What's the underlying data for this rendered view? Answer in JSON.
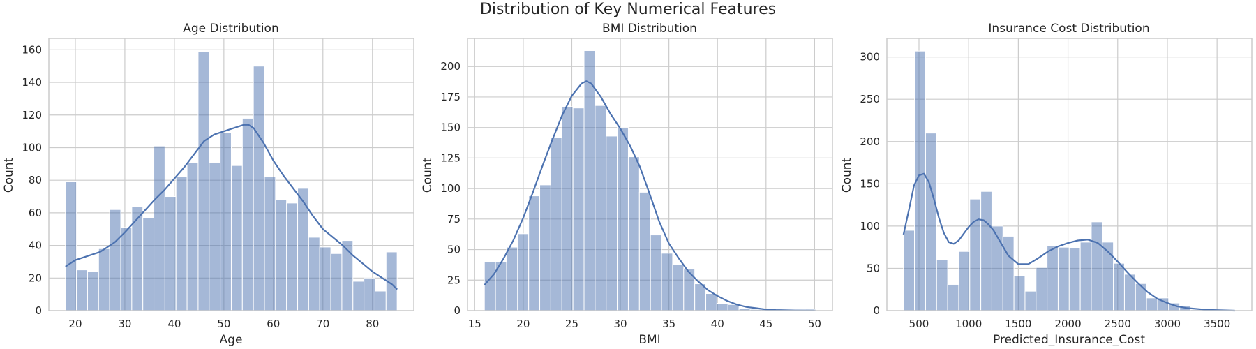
{
  "suptitle": "Distribution of Key Numerical Features",
  "style": {
    "bar_fill": "#4c72b0",
    "bar_opacity": 0.5,
    "bar_stroke": "#ffffff",
    "kde_color": "#4c72b0",
    "grid_color": "#cccccc",
    "frame_color": "#cccccc",
    "background": "#ffffff"
  },
  "chart_data": [
    {
      "type": "histogram",
      "title": "Age Distribution",
      "xlabel": "Age",
      "ylabel": "Count",
      "grid": true,
      "xlim": [
        14.65,
        88.35
      ],
      "ylim": [
        0,
        167
      ],
      "xticks": [
        20,
        30,
        40,
        50,
        60,
        70,
        80
      ],
      "yticks": [
        0,
        20,
        40,
        60,
        80,
        100,
        120,
        140,
        160
      ],
      "bin_start": 18,
      "bin_width": 2.233,
      "values": [
        79,
        25,
        24,
        38,
        62,
        51,
        64,
        57,
        101,
        70,
        82,
        91,
        159,
        91,
        109,
        89,
        118,
        150,
        82,
        68,
        66,
        75,
        45,
        39,
        35,
        43,
        18,
        20,
        12,
        36
      ],
      "kde": {
        "x": [
          18,
          20,
          22,
          25,
          28,
          30,
          33,
          36,
          38,
          40,
          42,
          44,
          46,
          48,
          50,
          52,
          54,
          55,
          56,
          58,
          60,
          62,
          64,
          66,
          68,
          70,
          72,
          74,
          76,
          78,
          80,
          82,
          84,
          85
        ],
        "y": [
          27,
          31,
          33,
          36,
          42,
          48,
          58,
          68,
          74,
          81,
          88,
          96,
          104,
          108,
          110,
          112,
          114,
          114,
          112,
          103,
          92,
          83,
          75,
          67,
          58,
          50,
          45,
          40,
          34,
          29,
          24,
          20,
          16,
          13
        ]
      }
    },
    {
      "type": "histogram",
      "title": "BMI Distribution",
      "xlabel": "BMI",
      "ylabel": "Count",
      "grid": true,
      "xlim": [
        14.26,
        51.84
      ],
      "ylim": [
        0,
        223
      ],
      "xticks": [
        15,
        20,
        25,
        30,
        35,
        40,
        45,
        50
      ],
      "yticks": [
        0,
        25,
        50,
        75,
        100,
        125,
        150,
        175,
        200
      ],
      "bin_start": 16,
      "bin_width": 1.14,
      "values": [
        40,
        40,
        52,
        63,
        94,
        103,
        142,
        167,
        166,
        213,
        168,
        143,
        150,
        126,
        97,
        62,
        47,
        38,
        34,
        22,
        14,
        6,
        5,
        2,
        1,
        1,
        0,
        0,
        0,
        1
      ],
      "kde": {
        "x": [
          16,
          17,
          18,
          19,
          20,
          21,
          22,
          23,
          24,
          25,
          26,
          26.5,
          27,
          28,
          29,
          30,
          31,
          32,
          33,
          34,
          35,
          36,
          37,
          38,
          39,
          40,
          41,
          42,
          43,
          44,
          45,
          46,
          48,
          50
        ],
        "y": [
          21,
          30,
          43,
          58,
          76,
          97,
          119,
          140,
          160,
          176,
          186,
          188,
          186,
          175,
          161,
          149,
          135,
          118,
          96,
          73,
          55,
          43,
          32,
          24,
          17,
          12,
          8,
          5,
          3,
          2,
          1,
          0.5,
          0.2,
          0.1
        ]
      }
    },
    {
      "type": "histogram",
      "title": "Insurance Cost Distribution",
      "xlabel": "Predicted_Insurance_Cost",
      "ylabel": "Count",
      "grid": true,
      "xlim": [
        177,
        3850
      ],
      "ylim": [
        0,
        322
      ],
      "xticks": [
        500,
        1000,
        1500,
        2000,
        2500,
        3000,
        3500
      ],
      "yticks": [
        0,
        50,
        100,
        150,
        200,
        250,
        300
      ],
      "bin_start": 344,
      "bin_width": 111.2,
      "values": [
        95,
        307,
        210,
        60,
        31,
        70,
        132,
        141,
        100,
        88,
        41,
        23,
        51,
        77,
        75,
        74,
        81,
        105,
        81,
        56,
        43,
        32,
        15,
        15,
        9,
        6,
        1,
        1,
        1,
        0
      ],
      "kde": {
        "x": [
          344,
          400,
          450,
          500,
          550,
          600,
          650,
          700,
          750,
          800,
          850,
          900,
          950,
          1000,
          1050,
          1100,
          1150,
          1200,
          1250,
          1300,
          1350,
          1400,
          1500,
          1600,
          1700,
          1800,
          1900,
          2000,
          2100,
          2200,
          2300,
          2400,
          2500,
          2600,
          2700,
          2800,
          2900,
          3000,
          3100,
          3200,
          3400,
          3680
        ],
        "y": [
          90,
          120,
          148,
          160,
          162,
          152,
          132,
          110,
          92,
          81,
          79,
          83,
          91,
          99,
          105,
          108,
          107,
          102,
          95,
          85,
          75,
          65,
          55,
          55,
          62,
          70,
          76,
          80,
          83,
          84,
          80,
          70,
          58,
          45,
          33,
          22,
          14,
          9,
          5,
          3,
          1,
          0
        ]
      }
    }
  ]
}
